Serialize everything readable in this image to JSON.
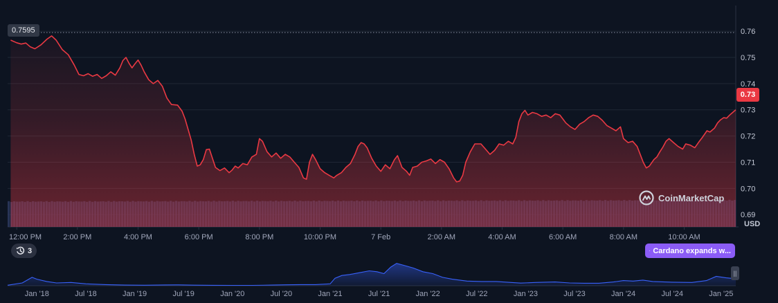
{
  "chart_data": [
    {
      "type": "line",
      "series_name": "",
      "unit": "USD",
      "ylim": [
        0.6853,
        0.7698
      ],
      "y_ticks": [
        "0.76",
        "0.75",
        "0.74",
        "0.73",
        "0.72",
        "0.71",
        "0.70",
        "0.69"
      ],
      "x_ticks": [
        "12:00 PM",
        "2:00 PM",
        "4:00 PM",
        "6:00 PM",
        "8:00 PM",
        "10:00 PM",
        "7 Feb",
        "2:00 AM",
        "4:00 AM",
        "6:00 AM",
        "8:00 AM",
        "10:00 AM"
      ],
      "x_range_hours": [
        -0.3,
        23.7
      ],
      "high_label": "0.7595",
      "current_label": "0.73",
      "grid": true,
      "line_color": "#ea3943",
      "volume_color": "#2e3a5f",
      "points": [
        [
          -0.2,
          0.7566
        ],
        [
          0.0,
          0.7556
        ],
        [
          0.15,
          0.7551
        ],
        [
          0.3,
          0.7555
        ],
        [
          0.45,
          0.754
        ],
        [
          0.6,
          0.7533
        ],
        [
          0.8,
          0.7548
        ],
        [
          1.0,
          0.757
        ],
        [
          1.15,
          0.7582
        ],
        [
          1.3,
          0.7566
        ],
        [
          1.5,
          0.753
        ],
        [
          1.7,
          0.751
        ],
        [
          1.9,
          0.747
        ],
        [
          2.05,
          0.7435
        ],
        [
          2.2,
          0.743
        ],
        [
          2.35,
          0.7438
        ],
        [
          2.5,
          0.7428
        ],
        [
          2.65,
          0.7435
        ],
        [
          2.8,
          0.742
        ],
        [
          2.95,
          0.743
        ],
        [
          3.1,
          0.7445
        ],
        [
          3.25,
          0.7432
        ],
        [
          3.4,
          0.746
        ],
        [
          3.5,
          0.7488
        ],
        [
          3.6,
          0.75
        ],
        [
          3.7,
          0.7478
        ],
        [
          3.8,
          0.746
        ],
        [
          3.9,
          0.7476
        ],
        [
          4.0,
          0.749
        ],
        [
          4.1,
          0.747
        ],
        [
          4.2,
          0.7445
        ],
        [
          4.35,
          0.7415
        ],
        [
          4.5,
          0.74
        ],
        [
          4.65,
          0.7412
        ],
        [
          4.8,
          0.739
        ],
        [
          4.95,
          0.7345
        ],
        [
          5.1,
          0.732
        ],
        [
          5.3,
          0.7318
        ],
        [
          5.45,
          0.7295
        ],
        [
          5.55,
          0.7265
        ],
        [
          5.65,
          0.7225
        ],
        [
          5.75,
          0.7185
        ],
        [
          5.85,
          0.713
        ],
        [
          5.95,
          0.7085
        ],
        [
          6.05,
          0.709
        ],
        [
          6.15,
          0.711
        ],
        [
          6.25,
          0.7148
        ],
        [
          6.35,
          0.715
        ],
        [
          6.45,
          0.7115
        ],
        [
          6.55,
          0.708
        ],
        [
          6.7,
          0.7068
        ],
        [
          6.85,
          0.7078
        ],
        [
          7.0,
          0.706
        ],
        [
          7.1,
          0.707
        ],
        [
          7.2,
          0.7085
        ],
        [
          7.3,
          0.7078
        ],
        [
          7.45,
          0.7095
        ],
        [
          7.6,
          0.709
        ],
        [
          7.75,
          0.712
        ],
        [
          7.9,
          0.713
        ],
        [
          8.0,
          0.719
        ],
        [
          8.1,
          0.718
        ],
        [
          8.25,
          0.714
        ],
        [
          8.4,
          0.712
        ],
        [
          8.55,
          0.7135
        ],
        [
          8.7,
          0.7115
        ],
        [
          8.85,
          0.713
        ],
        [
          9.0,
          0.712
        ],
        [
          9.15,
          0.71
        ],
        [
          9.3,
          0.708
        ],
        [
          9.45,
          0.704
        ],
        [
          9.55,
          0.7035
        ],
        [
          9.65,
          0.71
        ],
        [
          9.75,
          0.713
        ],
        [
          9.85,
          0.711
        ],
        [
          10.0,
          0.7075
        ],
        [
          10.15,
          0.706
        ],
        [
          10.3,
          0.705
        ],
        [
          10.45,
          0.704
        ],
        [
          10.55,
          0.705
        ],
        [
          10.7,
          0.706
        ],
        [
          10.85,
          0.708
        ],
        [
          11.0,
          0.7095
        ],
        [
          11.15,
          0.713
        ],
        [
          11.25,
          0.716
        ],
        [
          11.35,
          0.7175
        ],
        [
          11.45,
          0.717
        ],
        [
          11.55,
          0.7155
        ],
        [
          11.7,
          0.7115
        ],
        [
          11.85,
          0.7085
        ],
        [
          12.0,
          0.7065
        ],
        [
          12.15,
          0.709
        ],
        [
          12.3,
          0.7075
        ],
        [
          12.45,
          0.711
        ],
        [
          12.55,
          0.7125
        ],
        [
          12.7,
          0.708
        ],
        [
          12.85,
          0.7065
        ],
        [
          12.95,
          0.705
        ],
        [
          13.05,
          0.708
        ],
        [
          13.2,
          0.7085
        ],
        [
          13.35,
          0.71
        ],
        [
          13.5,
          0.7105
        ],
        [
          13.65,
          0.7112
        ],
        [
          13.8,
          0.7095
        ],
        [
          13.95,
          0.711
        ],
        [
          14.1,
          0.71
        ],
        [
          14.25,
          0.7075
        ],
        [
          14.4,
          0.704
        ],
        [
          14.5,
          0.7025
        ],
        [
          14.6,
          0.7028
        ],
        [
          14.7,
          0.705
        ],
        [
          14.8,
          0.71
        ],
        [
          14.95,
          0.714
        ],
        [
          15.1,
          0.717
        ],
        [
          15.3,
          0.717
        ],
        [
          15.45,
          0.715
        ],
        [
          15.6,
          0.713
        ],
        [
          15.75,
          0.7145
        ],
        [
          15.9,
          0.717
        ],
        [
          16.05,
          0.7165
        ],
        [
          16.2,
          0.718
        ],
        [
          16.35,
          0.717
        ],
        [
          16.45,
          0.7195
        ],
        [
          16.55,
          0.7255
        ],
        [
          16.65,
          0.7285
        ],
        [
          16.75,
          0.7298
        ],
        [
          16.85,
          0.728
        ],
        [
          17.0,
          0.729
        ],
        [
          17.15,
          0.7285
        ],
        [
          17.3,
          0.7275
        ],
        [
          17.45,
          0.728
        ],
        [
          17.6,
          0.727
        ],
        [
          17.75,
          0.7285
        ],
        [
          17.9,
          0.728
        ],
        [
          18.0,
          0.7265
        ],
        [
          18.1,
          0.725
        ],
        [
          18.25,
          0.7235
        ],
        [
          18.4,
          0.7225
        ],
        [
          18.55,
          0.7245
        ],
        [
          18.7,
          0.7255
        ],
        [
          18.85,
          0.727
        ],
        [
          19.0,
          0.728
        ],
        [
          19.15,
          0.7275
        ],
        [
          19.3,
          0.726
        ],
        [
          19.45,
          0.724
        ],
        [
          19.6,
          0.723
        ],
        [
          19.75,
          0.722
        ],
        [
          19.9,
          0.7235
        ],
        [
          20.0,
          0.719
        ],
        [
          20.15,
          0.7175
        ],
        [
          20.3,
          0.718
        ],
        [
          20.45,
          0.716
        ],
        [
          20.55,
          0.713
        ],
        [
          20.65,
          0.71
        ],
        [
          20.75,
          0.7078
        ],
        [
          20.85,
          0.7085
        ],
        [
          21.0,
          0.711
        ],
        [
          21.1,
          0.712
        ],
        [
          21.2,
          0.714
        ],
        [
          21.3,
          0.7158
        ],
        [
          21.4,
          0.718
        ],
        [
          21.5,
          0.719
        ],
        [
          21.65,
          0.7175
        ],
        [
          21.8,
          0.716
        ],
        [
          21.95,
          0.715
        ],
        [
          22.05,
          0.717
        ],
        [
          22.2,
          0.7165
        ],
        [
          22.35,
          0.7155
        ],
        [
          22.5,
          0.718
        ],
        [
          22.6,
          0.7195
        ],
        [
          22.75,
          0.722
        ],
        [
          22.85,
          0.7215
        ],
        [
          23.0,
          0.723
        ],
        [
          23.1,
          0.725
        ],
        [
          23.2,
          0.7262
        ],
        [
          23.3,
          0.727
        ],
        [
          23.4,
          0.7268
        ],
        [
          23.5,
          0.728
        ],
        [
          23.6,
          0.729
        ],
        [
          23.7,
          0.73
        ]
      ]
    },
    {
      "type": "area",
      "role": "navigator",
      "x_ticks": [
        "Jan '18",
        "Jul '18",
        "Jan '19",
        "Jul '19",
        "Jan '20",
        "Jul '20",
        "Jan '21",
        "Jul '21",
        "Jan '22",
        "Jul '22",
        "Jan '23",
        "Jul '23",
        "Jan '24",
        "Jul '24",
        "Jan '25"
      ],
      "x_range": [
        2017.7,
        2025.15
      ],
      "ylim": [
        0,
        2.6
      ],
      "line_color": "#3861fb",
      "points": [
        [
          2017.7,
          0.05
        ],
        [
          2017.85,
          0.3
        ],
        [
          2017.95,
          0.9
        ],
        [
          2018.0,
          0.7
        ],
        [
          2018.1,
          0.45
        ],
        [
          2018.2,
          0.3
        ],
        [
          2018.35,
          0.35
        ],
        [
          2018.5,
          0.2
        ],
        [
          2018.7,
          0.12
        ],
        [
          2018.9,
          0.07
        ],
        [
          2019.1,
          0.05
        ],
        [
          2019.3,
          0.08
        ],
        [
          2019.45,
          0.09
        ],
        [
          2019.6,
          0.06
        ],
        [
          2019.8,
          0.045
        ],
        [
          2020.0,
          0.04
        ],
        [
          2020.2,
          0.035
        ],
        [
          2020.4,
          0.07
        ],
        [
          2020.55,
          0.1
        ],
        [
          2020.7,
          0.12
        ],
        [
          2020.85,
          0.12
        ],
        [
          2021.0,
          0.2
        ],
        [
          2021.05,
          0.8
        ],
        [
          2021.12,
          1.1
        ],
        [
          2021.2,
          1.2
        ],
        [
          2021.3,
          1.4
        ],
        [
          2021.4,
          1.6
        ],
        [
          2021.48,
          1.5
        ],
        [
          2021.55,
          1.3
        ],
        [
          2021.62,
          2.0
        ],
        [
          2021.68,
          2.4
        ],
        [
          2021.75,
          2.2
        ],
        [
          2021.85,
          1.9
        ],
        [
          2021.95,
          1.5
        ],
        [
          2022.05,
          1.3
        ],
        [
          2022.15,
          0.9
        ],
        [
          2022.25,
          0.7
        ],
        [
          2022.4,
          0.5
        ],
        [
          2022.55,
          0.45
        ],
        [
          2022.7,
          0.45
        ],
        [
          2022.85,
          0.35
        ],
        [
          2022.95,
          0.28
        ],
        [
          2023.1,
          0.35
        ],
        [
          2023.3,
          0.4
        ],
        [
          2023.45,
          0.3
        ],
        [
          2023.6,
          0.27
        ],
        [
          2023.75,
          0.27
        ],
        [
          2023.9,
          0.4
        ],
        [
          2024.0,
          0.55
        ],
        [
          2024.1,
          0.5
        ],
        [
          2024.2,
          0.6
        ],
        [
          2024.3,
          0.45
        ],
        [
          2024.5,
          0.38
        ],
        [
          2024.7,
          0.35
        ],
        [
          2024.85,
          0.55
        ],
        [
          2024.95,
          1.0
        ],
        [
          2025.05,
          0.85
        ],
        [
          2025.15,
          0.75
        ]
      ]
    }
  ],
  "watermark": {
    "text": "CoinMarketCap",
    "icon": "coinmarketcap-logo"
  },
  "history_pill": {
    "icon": "history-icon",
    "count": "3"
  },
  "event_pill": {
    "icon": "lightning-icon",
    "text": "Cardano expands w..."
  },
  "nav_handle": {
    "icon": "drag-handle-icon",
    "glyph": "||"
  },
  "colors": {
    "background": "#0d1421",
    "negative": "#ea3943",
    "grid": "#222a38",
    "event": "#8b5cf6"
  }
}
